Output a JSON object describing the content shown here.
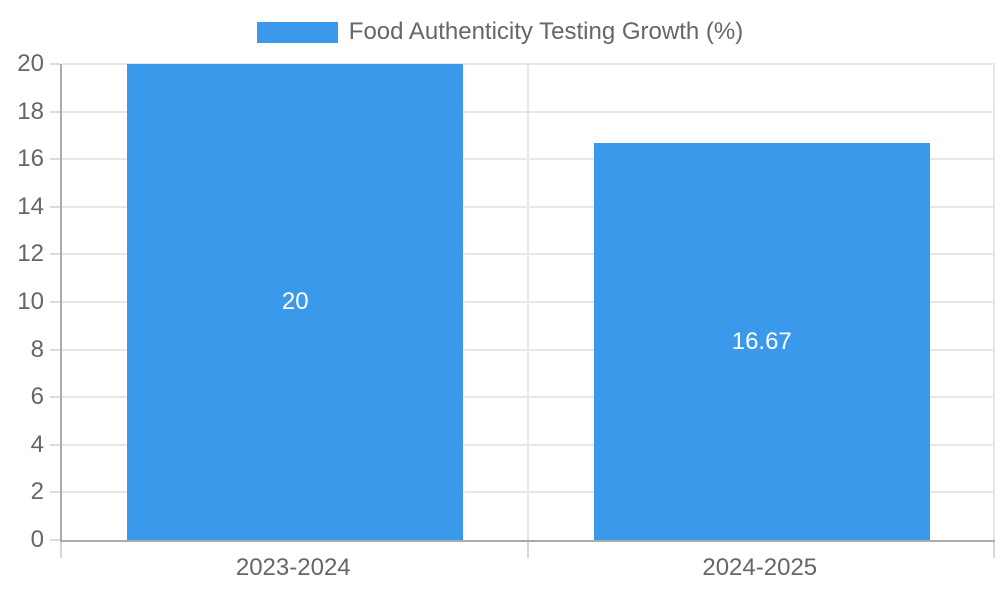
{
  "chart_data": {
    "type": "bar",
    "title": "Food Authenticity Testing Growth (%)",
    "categories": [
      "2023-2024",
      "2024-2025"
    ],
    "values": [
      20,
      16.67
    ],
    "value_labels": [
      "20",
      "16.67"
    ],
    "ylim": [
      0,
      20
    ],
    "ytick_step": 2,
    "ytick_labels": [
      "0",
      "2",
      "4",
      "6",
      "8",
      "10",
      "12",
      "14",
      "16",
      "18",
      "20"
    ],
    "bar_width_fraction": 0.72,
    "legend_position": "top",
    "grid": true,
    "colors": {
      "bar": "#3b99ec",
      "axis_text": "#666666",
      "grid_line": "#e7e7e7",
      "axis_line": "#ababab",
      "value_label": "#ffffff",
      "background": "#ffffff"
    }
  }
}
